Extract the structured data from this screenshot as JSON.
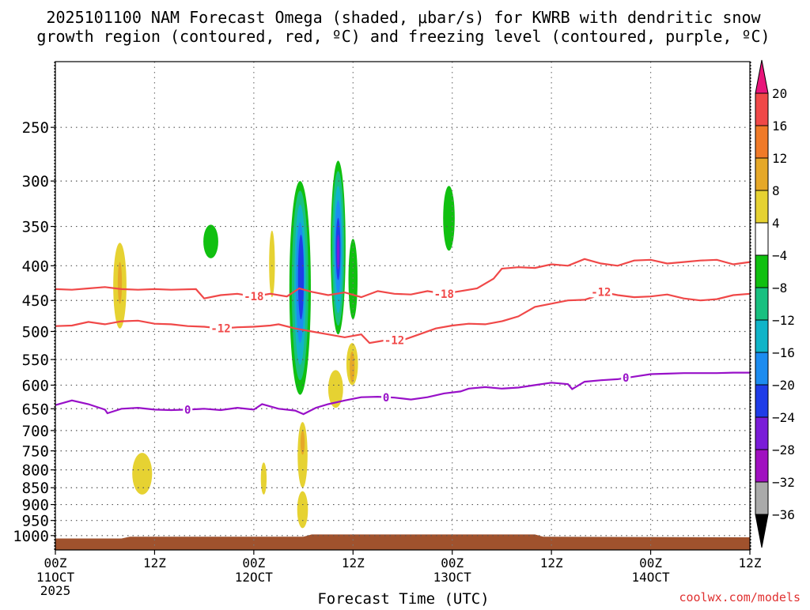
{
  "chart_data": {
    "type": "heatmap",
    "title_line1": "2025101100 NAM Forecast Omega (shaded, μbar/s) for KWRB with dendritic snow",
    "title_line2": "growth region (contoured, red, ºC) and freezing level (contoured, purple, ºC)",
    "xlabel": "Forecast Time (UTC)",
    "ylabel": "",
    "credit": "coolwx.com/models",
    "y_axis": {
      "scale": "log",
      "range_hpa": [
        1050,
        200
      ],
      "ticks": [
        250,
        300,
        350,
        400,
        450,
        500,
        550,
        600,
        650,
        700,
        750,
        800,
        850,
        900,
        950,
        1000
      ]
    },
    "x_axis": {
      "range_hours": [
        0,
        84
      ],
      "ticks": [
        {
          "hour": 0,
          "time": "00Z",
          "date": "11OCT",
          "year": "2025"
        },
        {
          "hour": 12,
          "time": "12Z",
          "date": "",
          "year": ""
        },
        {
          "hour": 24,
          "time": "00Z",
          "date": "12OCT",
          "year": ""
        },
        {
          "hour": 36,
          "time": "12Z",
          "date": "",
          "year": ""
        },
        {
          "hour": 48,
          "time": "00Z",
          "date": "13OCT",
          "year": ""
        },
        {
          "hour": 60,
          "time": "12Z",
          "date": "",
          "year": ""
        },
        {
          "hour": 72,
          "time": "00Z",
          "date": "14OCT",
          "year": ""
        },
        {
          "hour": 84,
          "time": "12Z",
          "date": "",
          "year": ""
        }
      ]
    },
    "grid": true,
    "colorbar": {
      "labels": [
        "20",
        "16",
        "12",
        "8",
        "4",
        "−4",
        "−8",
        "−12",
        "−16",
        "−20",
        "−24",
        "−28",
        "−32",
        "−36"
      ],
      "colors": [
        "#e8157a",
        "#f04848",
        "#f07a28",
        "#e6a828",
        "#e6d232",
        "#ffffff",
        "#10c010",
        "#18c080",
        "#10b4c8",
        "#1c8cf0",
        "#1f3ce8",
        "#7a1cd8",
        "#a010c0",
        "#aaaaaa",
        "#000000"
      ]
    },
    "contours": [
      {
        "label": "-18",
        "color": "#f04848",
        "points": [
          [
            0,
            433
          ],
          [
            2,
            434
          ],
          [
            4,
            432
          ],
          [
            6,
            430
          ],
          [
            8,
            433
          ],
          [
            10,
            434
          ],
          [
            12,
            433
          ],
          [
            14,
            434
          ],
          [
            17,
            433
          ],
          [
            18,
            447
          ],
          [
            20,
            442
          ],
          [
            22,
            440
          ],
          [
            24,
            444
          ],
          [
            26,
            440
          ],
          [
            28,
            444
          ],
          [
            29.5,
            432
          ],
          [
            31,
            437
          ],
          [
            33,
            442
          ],
          [
            35,
            438
          ],
          [
            37,
            445
          ],
          [
            39,
            436
          ],
          [
            41,
            440
          ],
          [
            43,
            441
          ],
          [
            45,
            436
          ],
          [
            47,
            440
          ],
          [
            49,
            436
          ],
          [
            51,
            432
          ],
          [
            53,
            418
          ],
          [
            54,
            404
          ],
          [
            56,
            402
          ],
          [
            58,
            403
          ],
          [
            60,
            398
          ],
          [
            62,
            400
          ],
          [
            64,
            391
          ],
          [
            66,
            397
          ],
          [
            68,
            400
          ],
          [
            70,
            393
          ],
          [
            72,
            392
          ],
          [
            74,
            397
          ],
          [
            76,
            395
          ],
          [
            78,
            393
          ],
          [
            80,
            392
          ],
          [
            82,
            398
          ],
          [
            84,
            395
          ]
        ],
        "label_positions": [
          [
            24,
            444
          ],
          [
            47,
            440
          ]
        ]
      },
      {
        "label": "-12",
        "color": "#f04848",
        "points": [
          [
            0,
            491
          ],
          [
            2,
            490
          ],
          [
            4,
            484
          ],
          [
            6,
            488
          ],
          [
            8,
            483
          ],
          [
            10,
            482
          ],
          [
            12,
            487
          ],
          [
            14,
            488
          ],
          [
            16,
            491
          ],
          [
            18,
            492
          ],
          [
            20,
            495
          ],
          [
            22,
            493
          ],
          [
            24,
            492
          ],
          [
            26,
            490
          ],
          [
            27,
            488
          ],
          [
            29,
            495
          ],
          [
            31,
            500
          ],
          [
            33,
            505
          ],
          [
            35,
            510
          ],
          [
            37,
            505
          ],
          [
            38,
            520
          ],
          [
            40,
            515
          ],
          [
            42,
            515
          ],
          [
            44,
            505
          ],
          [
            46,
            495
          ],
          [
            48,
            490
          ],
          [
            50,
            487
          ],
          [
            52,
            488
          ],
          [
            54,
            483
          ],
          [
            56,
            475
          ],
          [
            58,
            460
          ],
          [
            60,
            455
          ],
          [
            62,
            450
          ],
          [
            64,
            449
          ],
          [
            65,
            445
          ],
          [
            66,
            437
          ],
          [
            68,
            442
          ],
          [
            70,
            445
          ],
          [
            72,
            444
          ],
          [
            74,
            441
          ],
          [
            76,
            447
          ],
          [
            78,
            450
          ],
          [
            80,
            448
          ],
          [
            82,
            442
          ],
          [
            84,
            440
          ]
        ],
        "label_positions": [
          [
            20,
            495
          ],
          [
            41,
            515
          ],
          [
            66,
            437
          ]
        ]
      },
      {
        "label": "0",
        "color": "#9810c8",
        "points": [
          [
            0,
            642
          ],
          [
            2,
            632
          ],
          [
            4,
            640
          ],
          [
            6,
            652
          ],
          [
            6.3,
            660
          ],
          [
            8,
            650
          ],
          [
            10,
            648
          ],
          [
            12,
            652
          ],
          [
            14,
            653
          ],
          [
            16,
            652
          ],
          [
            18,
            650
          ],
          [
            20,
            653
          ],
          [
            22,
            648
          ],
          [
            24,
            652
          ],
          [
            25,
            640
          ],
          [
            27,
            650
          ],
          [
            29,
            654
          ],
          [
            30,
            662
          ],
          [
            31.5,
            648
          ],
          [
            33,
            640
          ],
          [
            35,
            632
          ],
          [
            37,
            625
          ],
          [
            39,
            624
          ],
          [
            41,
            626
          ],
          [
            43,
            630
          ],
          [
            45,
            625
          ],
          [
            47,
            617
          ],
          [
            49,
            613
          ],
          [
            50,
            607
          ],
          [
            52,
            604
          ],
          [
            54,
            607
          ],
          [
            56,
            605
          ],
          [
            58,
            600
          ],
          [
            60,
            595
          ],
          [
            62,
            598
          ],
          [
            62.5,
            608
          ],
          [
            64,
            593
          ],
          [
            66,
            590
          ],
          [
            68,
            588
          ],
          [
            70,
            583
          ],
          [
            72,
            578
          ],
          [
            74,
            577
          ],
          [
            76,
            576
          ],
          [
            78,
            576
          ],
          [
            80,
            576
          ],
          [
            82,
            575
          ],
          [
            84,
            575
          ]
        ],
        "label_positions": [
          [
            16,
            652
          ],
          [
            40,
            626
          ],
          [
            69,
            585
          ]
        ]
      }
    ],
    "shaded_regions": [
      {
        "value": 6,
        "color": "#e6d232",
        "center": [
          7.8,
          430
        ],
        "half_width": 0.8,
        "p_range": [
          370,
          495
        ]
      },
      {
        "value": 10,
        "color": "#e6a828",
        "center": [
          7.8,
          420
        ],
        "half_width": 0.25,
        "p_range": [
          395,
          455
        ]
      },
      {
        "value": -6,
        "color": "#10c010",
        "center": [
          18.8,
          370
        ],
        "half_width": 0.9,
        "p_range": [
          348,
          390
        ]
      },
      {
        "value": 6,
        "color": "#e6d232",
        "center": [
          26.2,
          410
        ],
        "half_width": 0.35,
        "p_range": [
          355,
          445
        ]
      },
      {
        "value": -6,
        "color": "#10c010",
        "center": [
          29.6,
          440
        ],
        "half_width": 1.3,
        "p_range": [
          300,
          620
        ]
      },
      {
        "value": -10,
        "color": "#18c080",
        "center": [
          29.6,
          435
        ],
        "half_width": 1.0,
        "p_range": [
          310,
          590
        ]
      },
      {
        "value": -14,
        "color": "#10b4c8",
        "center": [
          29.6,
          430
        ],
        "half_width": 0.7,
        "p_range": [
          325,
          560
        ]
      },
      {
        "value": -18,
        "color": "#1c8cf0",
        "center": [
          29.6,
          420
        ],
        "half_width": 0.5,
        "p_range": [
          345,
          520
        ]
      },
      {
        "value": -22,
        "color": "#1f3ce8",
        "center": [
          29.7,
          410
        ],
        "half_width": 0.35,
        "p_range": [
          360,
          480
        ]
      },
      {
        "value": -6,
        "color": "#10c010",
        "center": [
          34.2,
          380
        ],
        "half_width": 0.9,
        "p_range": [
          280,
          505
        ]
      },
      {
        "value": -10,
        "color": "#18c080",
        "center": [
          34.2,
          375
        ],
        "half_width": 0.75,
        "p_range": [
          290,
          490
        ]
      },
      {
        "value": -14,
        "color": "#10b4c8",
        "center": [
          34.2,
          370
        ],
        "half_width": 0.55,
        "p_range": [
          305,
          470
        ]
      },
      {
        "value": -18,
        "color": "#1c8cf0",
        "center": [
          34.2,
          372
        ],
        "half_width": 0.4,
        "p_range": [
          320,
          440
        ]
      },
      {
        "value": -22,
        "color": "#1f3ce8",
        "center": [
          34.2,
          375
        ],
        "half_width": 0.28,
        "p_range": [
          340,
          420
        ]
      },
      {
        "value": -26,
        "color": "#7a1cd8",
        "center": [
          34.2,
          380
        ],
        "half_width": 0.15,
        "p_range": [
          360,
          405
        ]
      },
      {
        "value": -6,
        "color": "#10c010",
        "center": [
          36.0,
          415
        ],
        "half_width": 0.55,
        "p_range": [
          365,
          480
        ]
      },
      {
        "value": -6,
        "color": "#10c010",
        "center": [
          47.6,
          340
        ],
        "half_width": 0.7,
        "p_range": [
          305,
          380
        ]
      },
      {
        "value": 6,
        "color": "#e6d232",
        "center": [
          35.9,
          565
        ],
        "half_width": 0.7,
        "p_range": [
          520,
          600
        ]
      },
      {
        "value": 10,
        "color": "#e6a828",
        "center": [
          35.9,
          565
        ],
        "half_width": 0.3,
        "p_range": [
          535,
          595
        ]
      },
      {
        "value": 6,
        "color": "#e6d232",
        "center": [
          33.9,
          610
        ],
        "half_width": 0.9,
        "p_range": [
          570,
          648
        ]
      },
      {
        "value": 6,
        "color": "#e6d232",
        "center": [
          10.5,
          810
        ],
        "half_width": 1.2,
        "p_range": [
          755,
          870
        ]
      },
      {
        "value": 6,
        "color": "#e6d232",
        "center": [
          25.2,
          820
        ],
        "half_width": 0.35,
        "p_range": [
          780,
          870
        ]
      },
      {
        "value": 6,
        "color": "#e6d232",
        "center": [
          29.9,
          770
        ],
        "half_width": 0.6,
        "p_range": [
          680,
          850
        ]
      },
      {
        "value": 10,
        "color": "#e6a828",
        "center": [
          29.9,
          730
        ],
        "half_width": 0.25,
        "p_range": [
          700,
          760
        ]
      },
      {
        "value": 6,
        "color": "#e6d232",
        "center": [
          29.9,
          920
        ],
        "half_width": 0.65,
        "p_range": [
          860,
          975
        ]
      }
    ],
    "terrain": {
      "color": "#a0522d",
      "points": [
        [
          0,
          1010
        ],
        [
          8,
          1010
        ],
        [
          9,
          1004
        ],
        [
          30,
          1004
        ],
        [
          31,
          996
        ],
        [
          58,
          996
        ],
        [
          59,
          1004
        ],
        [
          84,
          1006
        ]
      ]
    }
  }
}
